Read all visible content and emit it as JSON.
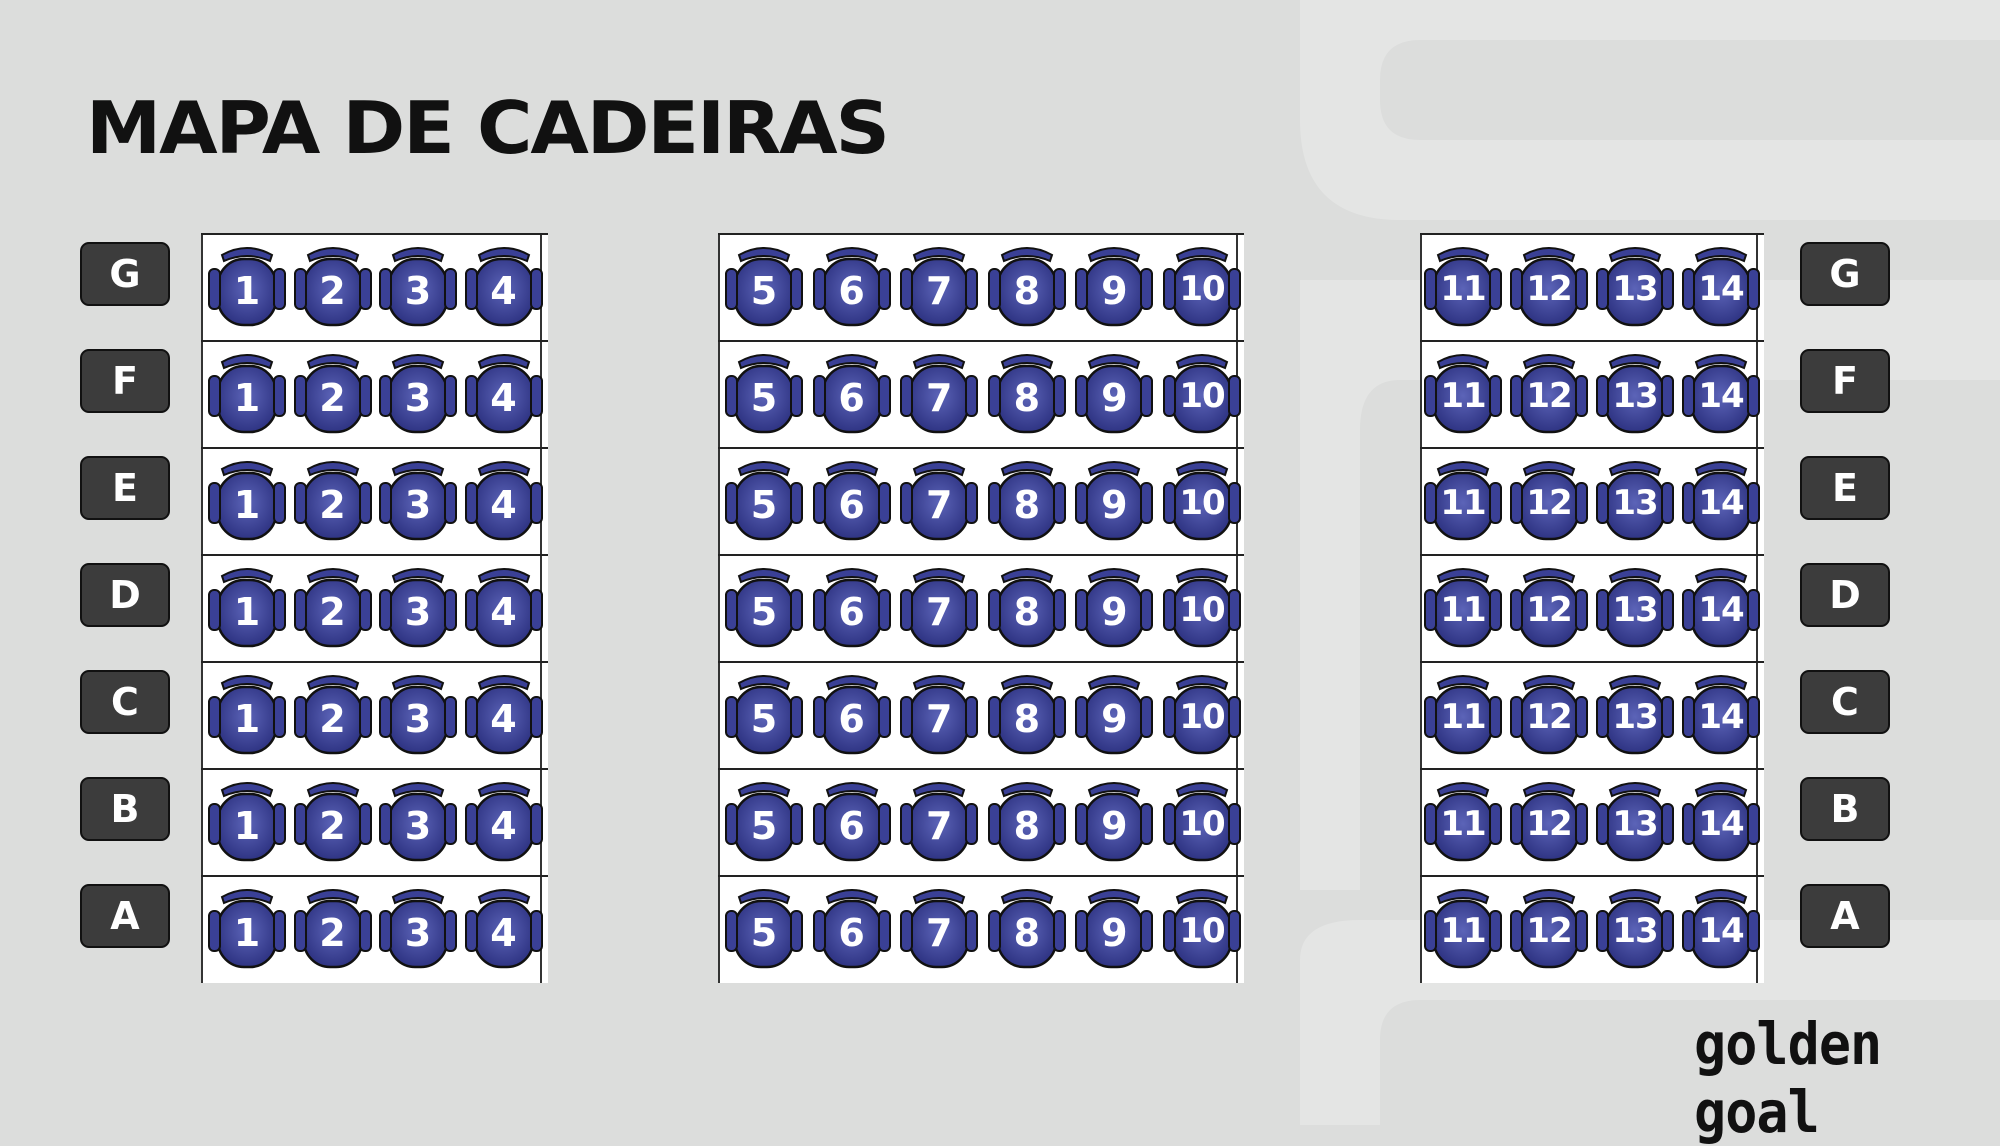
{
  "title": "MAPA DE CADEIRAS",
  "rows": [
    "G",
    "F",
    "E",
    "D",
    "C",
    "B",
    "A"
  ],
  "sections": [
    {
      "name": "left",
      "seats": [
        "1",
        "2",
        "3",
        "4"
      ]
    },
    {
      "name": "center",
      "seats": [
        "5",
        "6",
        "7",
        "8",
        "9",
        "10"
      ]
    },
    {
      "name": "right",
      "seats": [
        "11",
        "12",
        "13",
        "14"
      ]
    }
  ],
  "logo": "golden goal",
  "colors": {
    "background": "#dcdddc",
    "seat": "#3a4096",
    "label_bg": "#3c3c3c",
    "label_text": "#ffffff"
  }
}
